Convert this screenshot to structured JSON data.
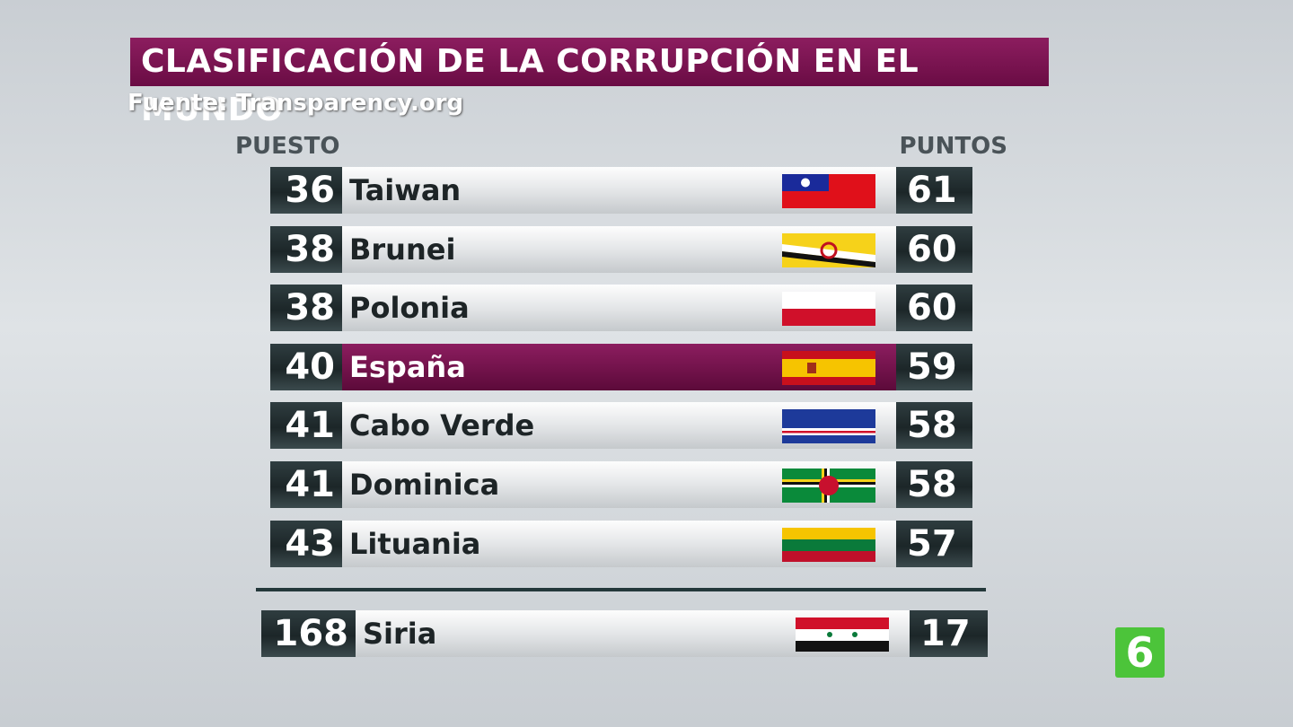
{
  "header": {
    "title": "CLASIFICACIÓN DE LA CORRUPCIÓN EN EL MUNDO",
    "source": "Fuente: Transparency.org"
  },
  "table": {
    "columns": [
      "PUESTO",
      "PUNTOS"
    ],
    "rows": [
      [
        36,
        "Taiwan",
        61
      ],
      [
        38,
        "Brunei",
        60
      ],
      [
        38,
        "Polonia",
        60
      ],
      [
        40,
        "España",
        59
      ],
      [
        41,
        "Cabo Verde",
        58
      ],
      [
        41,
        "Dominica",
        58
      ],
      [
        43,
        "Lituania",
        57
      ]
    ],
    "bottom_row": [
      168,
      "Siria",
      17
    ]
  },
  "logo": "6"
}
